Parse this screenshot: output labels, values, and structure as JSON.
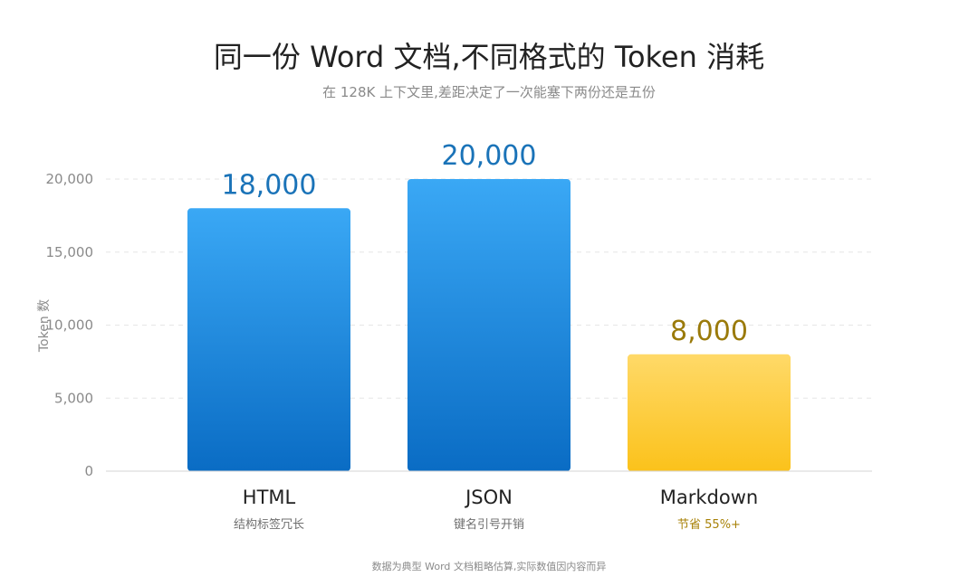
{
  "header": {
    "title": "同一份 Word 文档,不同格式的 Token 消耗",
    "subtitle": "在 128K 上下文里,差距决定了一次能塞下两份还是五份"
  },
  "footnote": "数据为典型 Word 文档粗略估算,实际数值因内容而异",
  "chart_data": {
    "type": "bar",
    "title": "同一份 Word 文档,不同格式的 Token 消耗",
    "subtitle": "在 128K 上下文里,差距决定了一次能塞下两份还是五份",
    "xlabel": "",
    "ylabel": "Token 数",
    "ylim": [
      0,
      20000
    ],
    "yticks": [
      0,
      5000,
      10000,
      15000,
      20000
    ],
    "ytick_labels": [
      "0",
      "5,000",
      "10,000",
      "15,000",
      "20,000"
    ],
    "grid": true,
    "categories": [
      "HTML",
      "JSON",
      "Markdown"
    ],
    "category_notes": [
      "结构标签冗长",
      "键名引号开销",
      "节省 55%+"
    ],
    "values": [
      18000,
      20000,
      8000
    ],
    "value_labels": [
      "18,000",
      "20,000",
      "8,000"
    ],
    "colors": {
      "blue_top": "#3aa8f5",
      "blue_bottom": "#0a6cc4",
      "gold_top": "#ffd968",
      "gold_bottom": "#fbc21b",
      "blue_label": "#1a73b8",
      "gold_label": "#9a7a0a",
      "note_gray": "#6f6f6f",
      "note_gold": "#a88208"
    },
    "highlight_index": 2
  }
}
